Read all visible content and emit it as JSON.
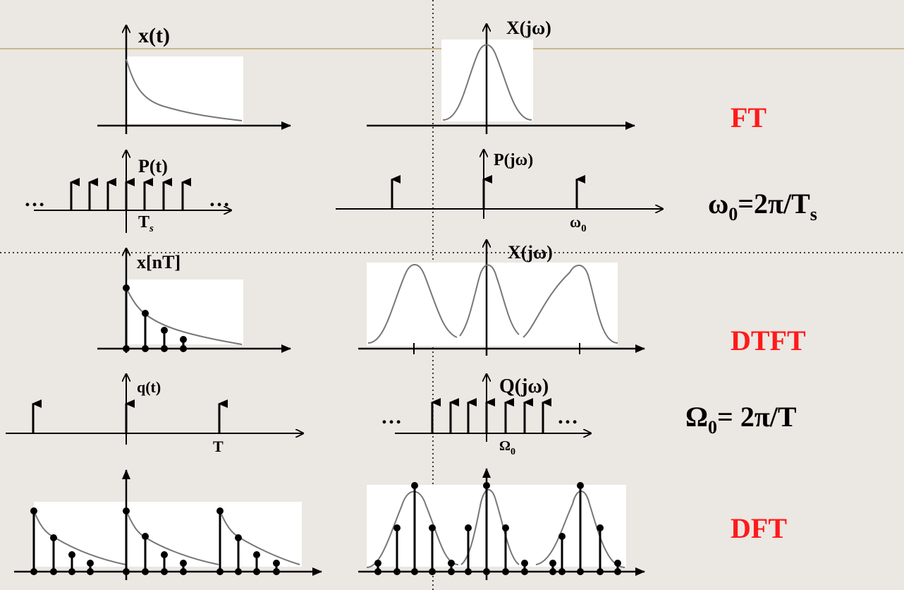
{
  "labels": {
    "x_t": "x(t)",
    "X_jw_1": "X(jω)",
    "P_t": "P(t)",
    "P_jw": "P(jω)",
    "Ts_main": "T",
    "Ts_sub": "s",
    "w0_main": "ω",
    "w0_sub": "0",
    "x_nT": "x[nT]",
    "X_jw_2": "X(jω)",
    "q_t": "q(t)",
    "Q_jw": "Q(jω)",
    "T": "T",
    "Omega0_main": "Ω",
    "Omega0_sub": "0",
    "dots": "…"
  },
  "side": {
    "ft": "FT",
    "eq1_a": "ω",
    "eq1_sub": "0",
    "eq1_b": "=2π/T",
    "eq1_sub2": "s",
    "dtft": "DTFT",
    "eq2_a": "Ω",
    "eq2_sub": "0",
    "eq2_b": "= 2π/T",
    "dft": "DFT"
  },
  "colors": {
    "background": "#ebe7e2",
    "accent": "#ff1a1a",
    "rule": "#c8b98a"
  }
}
